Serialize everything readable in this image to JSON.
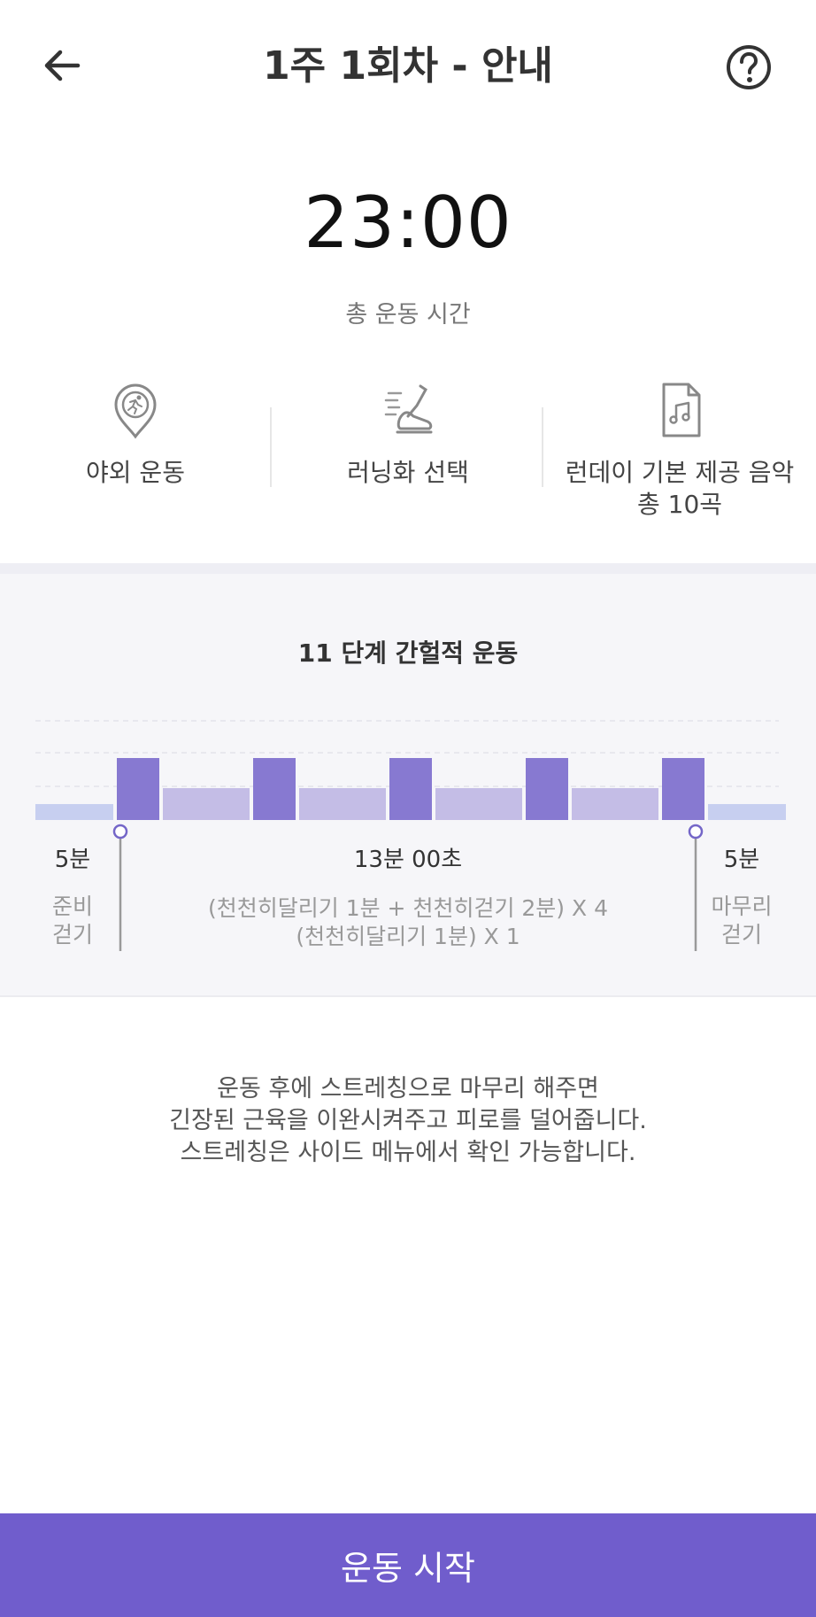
{
  "header": {
    "title": "1주 1회차 - 안내",
    "back_icon": "arrow-left-icon",
    "help_icon": "help-circle-icon"
  },
  "summary": {
    "total_time": "23:00",
    "total_label": "총 운동 시간"
  },
  "info": [
    {
      "icon": "outdoor-run-pin-icon",
      "label": "야외 운동",
      "label2": ""
    },
    {
      "icon": "running-shoe-icon",
      "label": "러닝화 선택",
      "label2": ""
    },
    {
      "icon": "music-file-icon",
      "label": "런데이 기본 제공 음악",
      "label2": "총 10곡"
    }
  ],
  "interval": {
    "title": "11 단계 간헐적 운동",
    "warmup": {
      "duration": "5분",
      "name_line1": "준비",
      "name_line2": "걷기"
    },
    "main": {
      "duration": "13분 00초",
      "desc_line1": "(천천히달리기 1분 + 천천히걷기 2분) X 4",
      "desc_line2": "(천천히달리기 1분) X 1"
    },
    "cooldown": {
      "duration": "5분",
      "name_line1": "마무리",
      "name_line2": "걷기"
    }
  },
  "chart_data": {
    "type": "bar",
    "title": "11 단계 간헐적 운동",
    "categories": [
      "준비 걷기",
      "천천히달리기",
      "천천히걷기",
      "천천히달리기",
      "천천히걷기",
      "천천히달리기",
      "천천히걷기",
      "천천히달리기",
      "천천히걷기",
      "천천히달리기",
      "마무리 걷기"
    ],
    "durations_min": [
      5,
      1,
      2,
      1,
      2,
      1,
      2,
      1,
      2,
      1,
      5
    ],
    "intensity": [
      "walk",
      "run",
      "walk-slow",
      "run",
      "walk-slow",
      "run",
      "walk-slow",
      "run",
      "walk-slow",
      "run",
      "walk"
    ],
    "colors": {
      "run": "#8779d1",
      "walk-slow": "#c4bde6",
      "walk": "#c7cff0"
    },
    "grid": true
  },
  "note": {
    "line1": "운동 후에 스트레칭으로 마무리 해주면",
    "line2": "긴장된 근육을 이완시켜주고 피로를 덜어줍니다.",
    "line3": "스트레칭은 사이드 메뉴에서 확인 가능합니다."
  },
  "start_button": {
    "label": "운동 시작"
  },
  "colors": {
    "accent": "#705dcc"
  }
}
